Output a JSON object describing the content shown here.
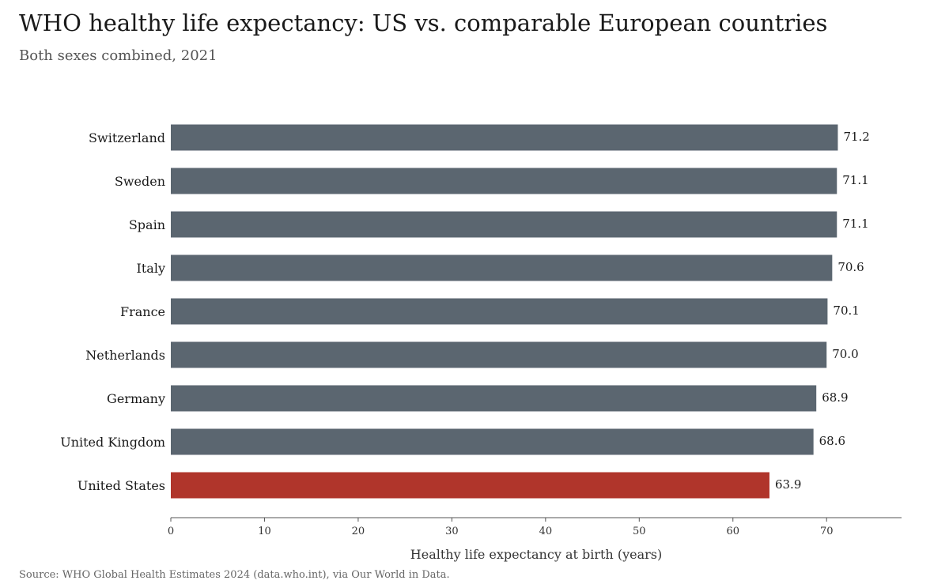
{
  "colors": {
    "default_bar": "#5b6670",
    "highlight_bar": "#b0352b",
    "axis": "#555555"
  },
  "chart_data": {
    "type": "bar",
    "orientation": "horizontal",
    "title": "WHO healthy life expectancy: US vs. comparable European countries",
    "subtitle": "Both sexes combined, 2021",
    "xlabel": "Healthy life expectancy at birth (years)",
    "ylabel": "",
    "categories": [
      "Switzerland",
      "Sweden",
      "Spain",
      "Italy",
      "France",
      "Netherlands",
      "Germany",
      "United Kingdom",
      "United States"
    ],
    "values": [
      71.2,
      71.1,
      71.1,
      70.6,
      70.1,
      70.0,
      68.9,
      68.6,
      63.9
    ],
    "value_labels": [
      "71.2",
      "71.1",
      "71.1",
      "70.6",
      "70.1",
      "70.0",
      "68.9",
      "68.6",
      "63.9"
    ],
    "highlight": "United States",
    "xlim": [
      0,
      78
    ],
    "xticks": [
      0,
      10,
      20,
      30,
      40,
      50,
      60,
      70
    ],
    "grid": false,
    "legend": "none"
  },
  "source": "Source: WHO Global Health Estimates 2024 (data.who.int), via Our World in Data."
}
